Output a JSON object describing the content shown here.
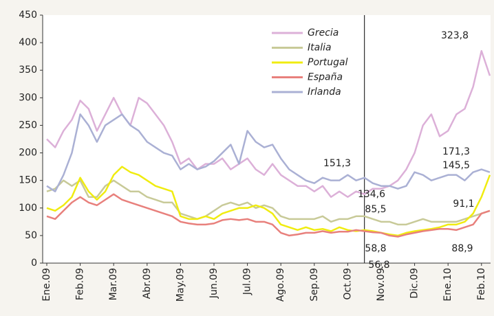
{
  "chart_data": {
    "type": "line",
    "categories": [
      "Ene.09",
      null,
      null,
      null,
      "Feb.09",
      null,
      null,
      null,
      "Mar.09",
      null,
      null,
      null,
      "Abr.09",
      null,
      null,
      null,
      "May.09",
      null,
      null,
      null,
      "Jun.09",
      null,
      null,
      null,
      "Jul.09",
      null,
      null,
      null,
      "Ago.09",
      null,
      null,
      null,
      "Sep.09",
      null,
      null,
      null,
      "Oct.09",
      null,
      null,
      null,
      "Nov.09",
      null,
      null,
      null,
      "Dic.09",
      null,
      null,
      null,
      "Ene.10",
      null,
      null,
      null,
      "Feb.10",
      null
    ],
    "series": [
      {
        "name": "Grecia",
        "color": "#dcb0d8",
        "values": [
          225,
          210,
          240,
          260,
          295,
          280,
          240,
          270,
          300,
          270,
          250,
          300,
          290,
          270,
          250,
          220,
          180,
          190,
          170,
          180,
          180,
          190,
          170,
          180,
          190,
          170,
          160,
          180,
          160,
          150,
          140,
          140,
          130,
          140,
          120,
          130,
          120,
          130,
          125,
          135,
          135,
          140,
          150,
          170,
          200,
          250,
          270,
          230,
          240,
          270,
          280,
          320,
          385,
          340
        ]
      },
      {
        "name": "Italia",
        "color": "#c8ca98",
        "values": [
          130,
          135,
          150,
          140,
          150,
          120,
          120,
          140,
          150,
          140,
          130,
          130,
          120,
          115,
          110,
          110,
          90,
          85,
          80,
          85,
          95,
          105,
          110,
          105,
          110,
          100,
          105,
          100,
          85,
          80,
          80,
          80,
          80,
          85,
          75,
          80,
          80,
          85,
          85,
          80,
          75,
          75,
          70,
          70,
          75,
          80,
          75,
          75,
          75,
          75,
          80,
          85,
          90,
          95
        ]
      },
      {
        "name": "Portugal",
        "color": "#f0ec10",
        "values": [
          100,
          95,
          105,
          120,
          155,
          130,
          115,
          130,
          160,
          175,
          165,
          160,
          150,
          140,
          135,
          130,
          85,
          80,
          80,
          85,
          80,
          90,
          95,
          100,
          100,
          105,
          100,
          90,
          70,
          65,
          60,
          65,
          60,
          62,
          58,
          65,
          60,
          58,
          60,
          58,
          55,
          52,
          50,
          55,
          58,
          60,
          62,
          65,
          70,
          70,
          75,
          90,
          120,
          160
        ]
      },
      {
        "name": "España",
        "color": "#e8807c",
        "values": [
          85,
          80,
          95,
          110,
          120,
          110,
          105,
          115,
          125,
          115,
          110,
          105,
          100,
          95,
          90,
          85,
          75,
          72,
          70,
          70,
          72,
          78,
          80,
          78,
          80,
          75,
          75,
          70,
          55,
          50,
          52,
          55,
          55,
          58,
          55,
          57,
          57,
          60,
          58,
          56,
          55,
          50,
          48,
          52,
          55,
          58,
          60,
          62,
          62,
          60,
          65,
          70,
          90,
          95
        ]
      },
      {
        "name": "Irlanda",
        "color": "#aab0d4",
        "values": [
          140,
          130,
          160,
          200,
          270,
          250,
          220,
          250,
          260,
          270,
          250,
          240,
          220,
          210,
          200,
          195,
          170,
          180,
          170,
          175,
          185,
          200,
          215,
          180,
          240,
          220,
          210,
          215,
          190,
          170,
          160,
          150,
          145,
          155,
          150,
          150,
          160,
          150,
          155,
          145,
          140,
          140,
          135,
          140,
          165,
          160,
          150,
          155,
          160,
          160,
          150,
          165,
          170,
          165
        ]
      }
    ],
    "ylim": [
      0,
      450
    ],
    "yticks": [
      0,
      50,
      100,
      150,
      200,
      250,
      300,
      350,
      400,
      450
    ],
    "reference_line": {
      "x_index": 38
    },
    "annotations": [
      "323,8",
      "151,3",
      "134,6",
      "85,5",
      "58,8",
      "56,8",
      "171,3",
      "145,5",
      "91,1",
      "88,9"
    ]
  }
}
